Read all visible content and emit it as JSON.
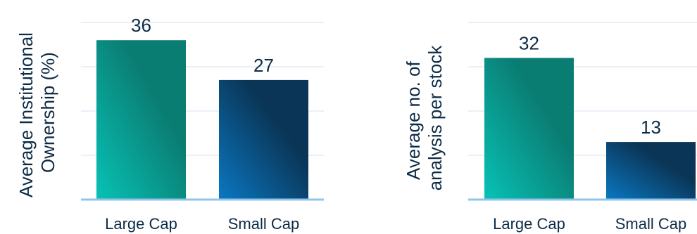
{
  "colors": {
    "large_cap_top": "#0a7d73",
    "large_cap_bottom": "#08c2b6",
    "small_cap_top": "#0a3556",
    "small_cap_bottom": "#0a78c2",
    "gridline": "#dfe8f3",
    "baseline": "#8fc4ec",
    "text": "#0d2b45"
  },
  "chart_data": [
    {
      "type": "bar",
      "title": "",
      "xlabel": "",
      "ylabel": "Average Institutional Ownership (%)",
      "ylabel_lines": [
        "Average Institutional",
        "Ownership (%)"
      ],
      "categories": [
        "Large Cap",
        "Small Cap"
      ],
      "values": [
        36,
        27
      ],
      "ylim": [
        0,
        40
      ],
      "grid": true
    },
    {
      "type": "bar",
      "title": "",
      "xlabel": "",
      "ylabel": "Average no. of analysis per stock",
      "ylabel_lines": [
        "Average no. of",
        "analysis per stock"
      ],
      "categories": [
        "Large Cap",
        "Small Cap"
      ],
      "values": [
        32,
        13
      ],
      "ylim": [
        0,
        40
      ],
      "grid": true
    }
  ]
}
